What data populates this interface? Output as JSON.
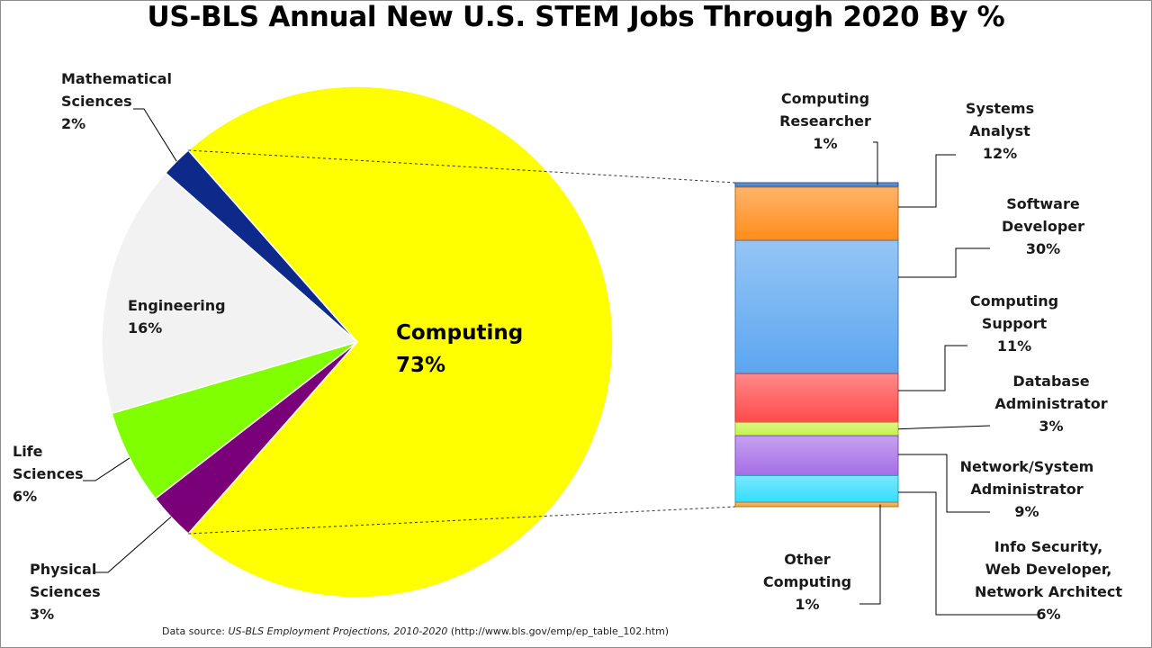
{
  "chart_data": {
    "type": "bar-of-pie",
    "title": "US-BLS Annual New U.S. STEM Jobs Through 2020 By %",
    "pie": {
      "slices": [
        {
          "name": "Computing",
          "lines": [
            "Computing"
          ],
          "value": 73,
          "value_label": "73%",
          "color": "#ffff00"
        },
        {
          "name": "Physical Sciences",
          "lines": [
            "Physical",
            "Sciences"
          ],
          "value": 3,
          "value_label": "3%",
          "color": "#7a007a"
        },
        {
          "name": "Life Sciences",
          "lines": [
            "Life",
            "Sciences"
          ],
          "value": 6,
          "value_label": "6%",
          "color": "#80ff00"
        },
        {
          "name": "Engineering",
          "lines": [
            "Engineering"
          ],
          "value": 16,
          "value_label": "16%",
          "color": "#f2f2f2"
        },
        {
          "name": "Mathematical Sciences",
          "lines": [
            "Mathematical",
            "Sciences"
          ],
          "value": 2,
          "value_label": "2%",
          "color": "#0d2a8a"
        }
      ]
    },
    "bar": {
      "breakout_of": "Computing",
      "segments": [
        {
          "name": "Computing Researcher",
          "lines": [
            "Computing",
            "Researcher"
          ],
          "value": 1,
          "value_label": "1%",
          "color": "#2f6fc0"
        },
        {
          "name": "Systems Analyst",
          "lines": [
            "Systems",
            "Analyst"
          ],
          "value": 12,
          "value_label": "12%",
          "color": "#ff8c1a"
        },
        {
          "name": "Software Developer",
          "lines": [
            "Software",
            "Developer"
          ],
          "value": 30,
          "value_label": "30%",
          "color": "#5ca6f0"
        },
        {
          "name": "Computing Support",
          "lines": [
            "Computing",
            "Support"
          ],
          "value": 11,
          "value_label": "11%",
          "color": "#ff4a4a"
        },
        {
          "name": "Database Administrator",
          "lines": [
            "Database",
            "Administrator"
          ],
          "value": 3,
          "value_label": "3%",
          "color": "#c6f24a"
        },
        {
          "name": "Network/System Administrator",
          "lines": [
            "Network/System",
            "Administrator"
          ],
          "value": 9,
          "value_label": "9%",
          "color": "#a56ee6"
        },
        {
          "name": "Info Security, Web Developer, Network Architect",
          "lines": [
            "Info Security,",
            "Web Developer,",
            "Network Architect"
          ],
          "value": 6,
          "value_label": "6%",
          "color": "#33ddff"
        },
        {
          "name": "Other Computing",
          "lines": [
            "Other",
            "Computing"
          ],
          "value": 1,
          "value_label": "1%",
          "color": "#f0a030"
        }
      ]
    }
  },
  "source": {
    "prefix": "Data source: ",
    "title": "US-BLS Employment Projections, 2010-2020",
    "url": " (http://www.bls.gov/emp/ep_table_102.htm)"
  }
}
